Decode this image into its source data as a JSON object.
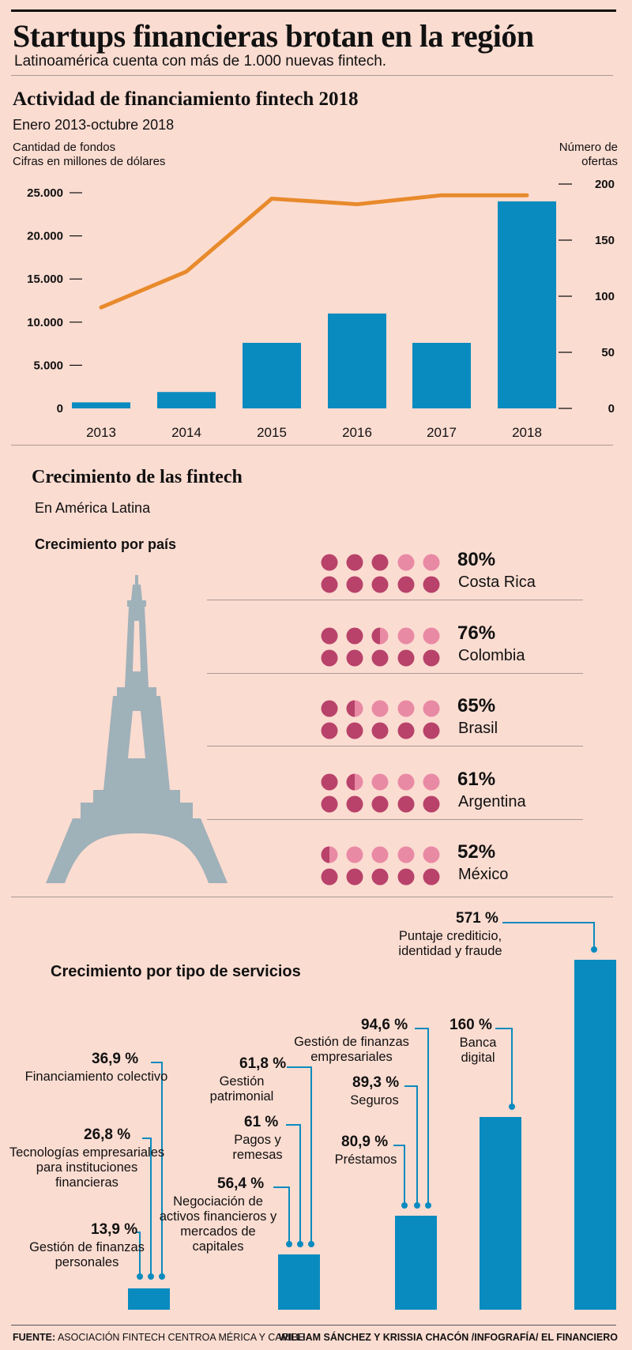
{
  "header": {
    "title": "Startups financieras brotan en la región",
    "subtitle": "Latinoamérica cuenta con más de 1.000 nuevas fintech."
  },
  "funding": {
    "title": "Actividad de financiamiento fintech 2018",
    "period": "Enero 2013-octubre 2018",
    "left_axis_label_1": "Cantidad de fondos",
    "left_axis_label_2": "Cifras en millones de dólares",
    "right_axis_label_1": "Número de",
    "right_axis_label_2": "ofertas"
  },
  "growth": {
    "title": "Crecimiento de las fintech",
    "region": "En América Latina",
    "by_country_title": "Crecimiento por país"
  },
  "services": {
    "title": "Crecimiento por tipo de servicios"
  },
  "footer": {
    "source_label": "FUENTE:",
    "source_text": "ASOCIACIÓN FINTECH CENTROA MÉRICA Y CARIBE",
    "credit": "WILLIAM SÁNCHEZ Y KRISSIA  CHACÓN /INFOGRAFÍA/ EL FINANCIERO"
  },
  "colors": {
    "background": "#fbdcd1",
    "bar": "#0a8bbf",
    "line": "#e88a2c",
    "dot_dark": "#b8426a",
    "dot_light": "#e98aa5",
    "tower": "#9fb1b9"
  },
  "chart_data": [
    {
      "type": "bar",
      "title": "Actividad de financiamiento fintech 2018",
      "categories": [
        "2013",
        "2014",
        "2015",
        "2016",
        "2017",
        "2018"
      ],
      "ylabel": "Cantidad de fondos (millones de dólares)",
      "y_ticks": [
        "0",
        "5.000",
        "10.000",
        "15.000",
        "20.000",
        "25.000"
      ],
      "ylim": [
        0,
        25000
      ],
      "y2label": "Número de ofertas",
      "y2_ticks": [
        "0",
        "50",
        "100",
        "150",
        "200"
      ],
      "y2lim": [
        0,
        200
      ],
      "series": [
        {
          "type": "bar",
          "axis": "left",
          "values": [
            700,
            1900,
            7600,
            11000,
            7600,
            24000
          ]
        },
        {
          "type": "line",
          "axis": "right",
          "values": [
            90,
            122,
            187,
            182,
            190,
            190
          ]
        }
      ]
    },
    {
      "type": "dots",
      "title": "Crecimiento por país",
      "items": [
        {
          "label": "Costa Rica",
          "pct_label": "80%",
          "value": 80
        },
        {
          "label": "Colombia",
          "pct_label": "76%",
          "value": 76
        },
        {
          "label": "Brasil",
          "pct_label": "65%",
          "value": 65
        },
        {
          "label": "Argentina",
          "pct_label": "61%",
          "value": 61
        },
        {
          "label": "México",
          "pct_label": "52%",
          "value": 52
        }
      ]
    },
    {
      "type": "bar",
      "title": "Crecimiento por tipo de servicios",
      "bars": [
        {
          "value": 25.8,
          "items": [
            {
              "pct": "36,9 %",
              "label": "Financiamiento colectivo",
              "value": 36.9
            },
            {
              "pct": "26,8 %",
              "label": "Tecnologías empresariales para instituciones financieras",
              "value": 26.8
            },
            {
              "pct": "13,9 %",
              "label": "Gestión de finanzas personales",
              "value": 13.9
            }
          ]
        },
        {
          "value": 59.7,
          "items": [
            {
              "pct": "61,8 %",
              "label": "Gestión patrimonial",
              "value": 61.8
            },
            {
              "pct": "61 %",
              "label": "Pagos y remesas",
              "value": 61
            },
            {
              "pct": "56,4 %",
              "label": "Negociación de activos financieros y mercados de capitales",
              "value": 56.4
            }
          ]
        },
        {
          "value": 88.3,
          "items": [
            {
              "pct": "94,6 %",
              "label": "Gestión de finanzas empresariales",
              "value": 94.6
            },
            {
              "pct": "89,3 %",
              "label": "Seguros",
              "value": 89.3
            },
            {
              "pct": "80,9 %",
              "label": "Préstamos",
              "value": 80.9
            }
          ]
        },
        {
          "value": 160,
          "items": [
            {
              "pct": "160 %",
              "label": "Banca digital",
              "value": 160
            }
          ]
        },
        {
          "value": 571,
          "items": [
            {
              "pct": "571 %",
              "label": "Puntaje crediticio, identidad y fraude",
              "value": 571
            }
          ]
        }
      ]
    }
  ]
}
